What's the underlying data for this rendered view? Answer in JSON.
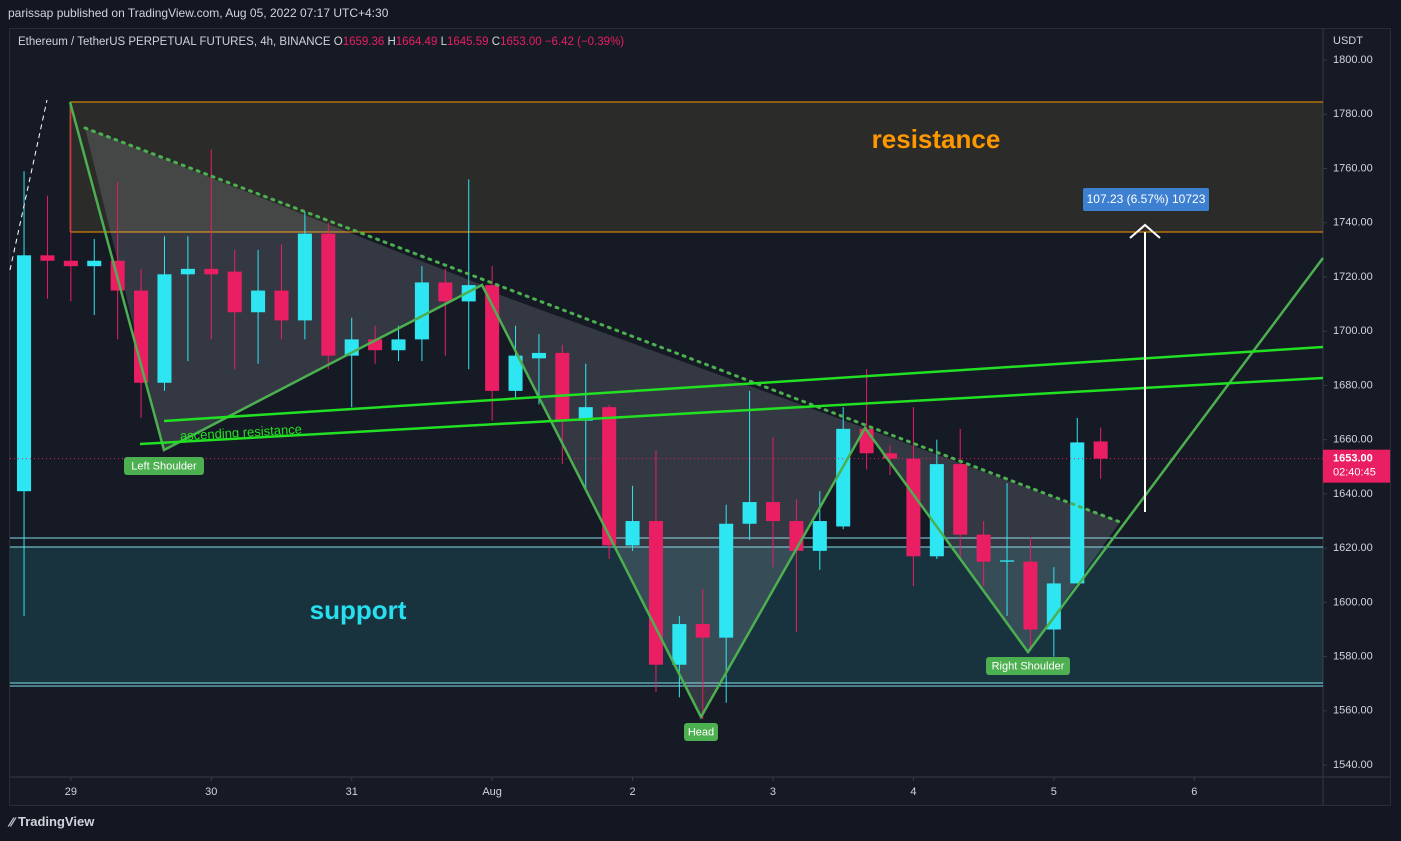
{
  "header": "parissap published on TradingView.com, Aug 05, 2022 07:17 UTC+4:30",
  "footer": "TradingView",
  "chart_data": {
    "type": "candlestick",
    "legend_symbol": "Ethereum / TetherUS PERPETUAL FUTURES, 4h, BINANCE",
    "legend_ohlc": [
      {
        "key": "O",
        "value": "1659.36"
      },
      {
        "key": "H",
        "value": "1664.49"
      },
      {
        "key": "L",
        "value": "1645.59"
      },
      {
        "key": "C",
        "value": "1653.00"
      }
    ],
    "legend_change": "−6.42 (−0.39%)",
    "axis_unit": "USDT",
    "last_price_label": "1653.00",
    "countdown": "02:40:45",
    "annotations": [
      "resistance",
      "support",
      "ascending resistance",
      "Left Shoulder",
      "Head",
      "Right Shoulder",
      "107.23 (6.57%) 10723"
    ],
    "up_color": "#2ee6f2",
    "down_color": "#e91e63",
    "open": [
      1641,
      1728,
      1726,
      1724,
      1726,
      1715,
      1681,
      1721,
      1723,
      1722,
      1707,
      1715,
      1704,
      1736,
      1691,
      1697,
      1693,
      1697,
      1718,
      1711,
      1717,
      1678,
      1690,
      1692,
      1667,
      1672,
      1621,
      1630,
      1577,
      1592,
      1587,
      1629,
      1637,
      1630,
      1619,
      1628,
      1664,
      1655,
      1653,
      1617,
      1651,
      1625,
      1615,
      1615,
      1590,
      1607,
      1659.36
    ],
    "high": [
      1759,
      1750,
      1784,
      1734,
      1755,
      1723,
      1735,
      1735,
      1767,
      1730,
      1730,
      1732,
      1744,
      1740,
      1705,
      1702,
      1702,
      1724,
      1723,
      1756,
      1724,
      1702,
      1699,
      1695,
      1688,
      1673,
      1643,
      1656,
      1595,
      1605,
      1636,
      1678,
      1661,
      1638,
      1641,
      1672,
      1686,
      1658,
      1672,
      1660,
      1664,
      1630,
      1644,
      1624,
      1613,
      1668,
      1664.49
    ],
    "low": [
      1595,
      1712,
      1711,
      1706,
      1697,
      1668,
      1678,
      1689,
      1697,
      1686,
      1688,
      1697,
      1697,
      1686,
      1672,
      1688,
      1689,
      1689,
      1691,
      1686,
      1667,
      1675,
      1673,
      1651,
      1641,
      1616,
      1619,
      1567,
      1565,
      1557,
      1563,
      1623,
      1613,
      1589,
      1612,
      1627,
      1649,
      1647,
      1606,
      1616,
      1616,
      1606,
      1595,
      1582,
      1580,
      1607,
      1645.59
    ],
    "close": [
      1728,
      1726,
      1724,
      1726,
      1715,
      1681,
      1721,
      1723,
      1721,
      1707,
      1715,
      1704,
      1736,
      1691,
      1697,
      1693,
      1697,
      1718,
      1711,
      1717,
      1678,
      1691,
      1692,
      1667,
      1672,
      1621,
      1630,
      1577,
      1592,
      1587,
      1629,
      1637,
      1630,
      1619,
      1630,
      1664,
      1655,
      1653,
      1617,
      1651,
      1625,
      1615,
      1615.5,
      1590,
      1607,
      1659,
      1653
    ],
    "xlim": [
      -0.6,
      55.5
    ],
    "xticks": [
      {
        "value": 2,
        "label": "29"
      },
      {
        "value": 8,
        "label": "30"
      },
      {
        "value": 14,
        "label": "31"
      },
      {
        "value": 20,
        "label": "Aug"
      },
      {
        "value": 26,
        "label": "2"
      },
      {
        "value": 32,
        "label": "3"
      },
      {
        "value": 38,
        "label": "4"
      },
      {
        "value": 44,
        "label": "5"
      },
      {
        "value": 50,
        "label": "6"
      }
    ],
    "ylim": [
      1535.6,
      1811.1
    ],
    "yticks": [
      {
        "value": 1540,
        "label": "1540.00"
      },
      {
        "value": 1560,
        "label": "1560.00"
      },
      {
        "value": 1580,
        "label": "1580.00"
      },
      {
        "value": 1600,
        "label": "1600.00"
      },
      {
        "value": 1620,
        "label": "1620.00"
      },
      {
        "value": 1640,
        "label": "1640.00"
      },
      {
        "value": 1660,
        "label": "1660.00"
      },
      {
        "value": 1680,
        "label": "1680.00"
      },
      {
        "value": 1700,
        "label": "1700.00"
      },
      {
        "value": 1720,
        "label": "1720.00"
      },
      {
        "value": 1740,
        "label": "1740.00"
      },
      {
        "value": 1760,
        "label": "1760.00"
      },
      {
        "value": 1780,
        "label": "1780.00"
      },
      {
        "value": 1800,
        "label": "1800.00"
      }
    ]
  }
}
